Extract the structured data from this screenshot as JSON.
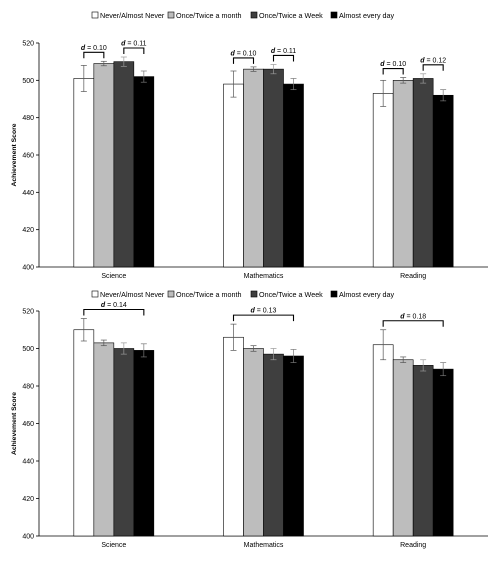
{
  "chart_data": [
    {
      "type": "bar",
      "legend": {
        "placement": "top",
        "entries": [
          "Never/Almost Never",
          "Once/Twice a month",
          "Once/Twice a Week",
          "Almost every day"
        ]
      },
      "series_colors": [
        "#ffffff",
        "#bdbdbd",
        "#3f3f3f",
        "#000000"
      ],
      "categories": [
        "Science",
        "Mathematics",
        "Reading"
      ],
      "ylabel": "Achievement Score",
      "ylim": [
        400,
        520
      ],
      "yticks": [
        "400",
        "420",
        "440",
        "460",
        "480",
        "500",
        "520"
      ],
      "grid": false,
      "series": [
        {
          "name": "Never/Almost Never",
          "values": [
            501,
            498,
            493
          ],
          "errors": [
            7,
            7,
            7
          ]
        },
        {
          "name": "Once/Twice a month",
          "values": [
            509,
            506,
            500
          ],
          "errors": [
            1.2,
            1.2,
            1.5
          ]
        },
        {
          "name": "Once/Twice a Week",
          "values": [
            510,
            506,
            501
          ],
          "errors": [
            2.5,
            2.5,
            2.5
          ]
        },
        {
          "name": "Almost every day",
          "values": [
            502,
            498,
            492
          ],
          "errors": [
            3,
            3,
            3
          ]
        }
      ],
      "annotations": [
        {
          "category": 0,
          "from": 0,
          "to": 1,
          "label": "= 0.10"
        },
        {
          "category": 0,
          "from": 2,
          "to": 3,
          "label": "= 0.11"
        },
        {
          "category": 1,
          "from": 0,
          "to": 1,
          "label": "= 0.10"
        },
        {
          "category": 1,
          "from": 2,
          "to": 3,
          "label": "= 0.11"
        },
        {
          "category": 2,
          "from": 0,
          "to": 1,
          "label": "= 0.10"
        },
        {
          "category": 2,
          "from": 2,
          "to": 3,
          "label": "= 0.12"
        }
      ]
    },
    {
      "type": "bar",
      "legend": {
        "placement": "top",
        "entries": [
          "Never/Almost Never",
          "Once/Twice a month",
          "Once/Twice a Week",
          "Almost every day"
        ]
      },
      "series_colors": [
        "#ffffff",
        "#bdbdbd",
        "#3f3f3f",
        "#000000"
      ],
      "categories": [
        "Science",
        "Mathematics",
        "Reading"
      ],
      "ylabel": "Achievement Score",
      "ylim": [
        400,
        520
      ],
      "yticks": [
        "400",
        "420",
        "440",
        "460",
        "480",
        "500",
        "520"
      ],
      "grid": false,
      "series": [
        {
          "name": "Never/Almost Never",
          "values": [
            510,
            506,
            502
          ],
          "errors": [
            6,
            7,
            8
          ]
        },
        {
          "name": "Once/Twice a month",
          "values": [
            503,
            500,
            494
          ],
          "errors": [
            1.5,
            1.5,
            1.5
          ]
        },
        {
          "name": "Once/Twice a Week",
          "values": [
            500,
            497,
            491
          ],
          "errors": [
            3,
            3,
            3
          ]
        },
        {
          "name": "Almost every day",
          "values": [
            499,
            496,
            489
          ],
          "errors": [
            3.5,
            3.5,
            3.5
          ]
        }
      ],
      "annotations": [
        {
          "category": 0,
          "from": 0,
          "to": 3,
          "label": "= 0.14"
        },
        {
          "category": 1,
          "from": 0,
          "to": 3,
          "label": "= 0.13"
        },
        {
          "category": 2,
          "from": 0,
          "to": 3,
          "label": "= 0.18"
        }
      ]
    }
  ],
  "effect_symbol": "d"
}
